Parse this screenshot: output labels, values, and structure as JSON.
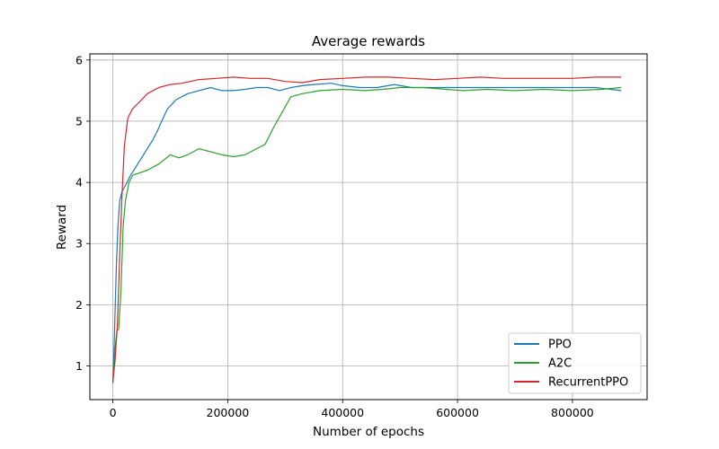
{
  "chart_data": {
    "type": "line",
    "title": "Average rewards",
    "xlabel": "Number of epochs",
    "ylabel": "Reward",
    "xlim": [
      -40000,
      930000
    ],
    "ylim": [
      0.45,
      6.1
    ],
    "xticks": [
      0,
      200000,
      400000,
      600000,
      800000
    ],
    "xtick_labels": [
      "0",
      "200000",
      "400000",
      "600000",
      "800000"
    ],
    "yticks": [
      1,
      2,
      3,
      4,
      5,
      6
    ],
    "ytick_labels": [
      "1",
      "2",
      "3",
      "4",
      "5",
      "6"
    ],
    "grid": true,
    "legend_position": "lower-right",
    "series": [
      {
        "name": "PPO",
        "color": "#1f77b4",
        "points": [
          [
            0,
            0.72
          ],
          [
            3000,
            1.6
          ],
          [
            6000,
            2.6
          ],
          [
            9000,
            3.3
          ],
          [
            12000,
            3.7
          ],
          [
            16000,
            3.85
          ],
          [
            22000,
            3.95
          ],
          [
            30000,
            4.1
          ],
          [
            40000,
            4.25
          ],
          [
            50000,
            4.4
          ],
          [
            60000,
            4.55
          ],
          [
            70000,
            4.7
          ],
          [
            78000,
            4.85
          ],
          [
            85000,
            5.0
          ],
          [
            95000,
            5.2
          ],
          [
            110000,
            5.35
          ],
          [
            130000,
            5.45
          ],
          [
            150000,
            5.5
          ],
          [
            170000,
            5.55
          ],
          [
            190000,
            5.5
          ],
          [
            210000,
            5.5
          ],
          [
            230000,
            5.52
          ],
          [
            250000,
            5.55
          ],
          [
            270000,
            5.55
          ],
          [
            290000,
            5.5
          ],
          [
            310000,
            5.55
          ],
          [
            330000,
            5.58
          ],
          [
            350000,
            5.6
          ],
          [
            380000,
            5.62
          ],
          [
            400000,
            5.58
          ],
          [
            430000,
            5.55
          ],
          [
            460000,
            5.55
          ],
          [
            490000,
            5.6
          ],
          [
            520000,
            5.55
          ],
          [
            550000,
            5.55
          ],
          [
            580000,
            5.55
          ],
          [
            610000,
            5.55
          ],
          [
            640000,
            5.55
          ],
          [
            680000,
            5.55
          ],
          [
            720000,
            5.55
          ],
          [
            760000,
            5.55
          ],
          [
            800000,
            5.55
          ],
          [
            840000,
            5.55
          ],
          [
            885000,
            5.5
          ]
        ]
      },
      {
        "name": "A2C",
        "color": "#2ca02c",
        "points": [
          [
            0,
            0.72
          ],
          [
            4000,
            1.3
          ],
          [
            7000,
            1.57
          ],
          [
            10000,
            1.6
          ],
          [
            14000,
            2.2
          ],
          [
            18000,
            3.3
          ],
          [
            22000,
            3.7
          ],
          [
            28000,
            4.0
          ],
          [
            35000,
            4.12
          ],
          [
            45000,
            4.15
          ],
          [
            60000,
            4.2
          ],
          [
            80000,
            4.3
          ],
          [
            100000,
            4.45
          ],
          [
            115000,
            4.4
          ],
          [
            130000,
            4.45
          ],
          [
            150000,
            4.55
          ],
          [
            170000,
            4.5
          ],
          [
            190000,
            4.45
          ],
          [
            210000,
            4.42
          ],
          [
            230000,
            4.45
          ],
          [
            250000,
            4.55
          ],
          [
            265000,
            4.62
          ],
          [
            280000,
            4.9
          ],
          [
            295000,
            5.15
          ],
          [
            310000,
            5.4
          ],
          [
            330000,
            5.45
          ],
          [
            360000,
            5.5
          ],
          [
            400000,
            5.52
          ],
          [
            440000,
            5.5
          ],
          [
            470000,
            5.52
          ],
          [
            500000,
            5.55
          ],
          [
            540000,
            5.55
          ],
          [
            580000,
            5.52
          ],
          [
            610000,
            5.5
          ],
          [
            650000,
            5.52
          ],
          [
            700000,
            5.5
          ],
          [
            750000,
            5.52
          ],
          [
            800000,
            5.5
          ],
          [
            850000,
            5.52
          ],
          [
            885000,
            5.55
          ]
        ]
      },
      {
        "name": "RecurrentPPO",
        "color": "#d62728",
        "points": [
          [
            0,
            0.75
          ],
          [
            4000,
            1.1
          ],
          [
            8000,
            1.7
          ],
          [
            12000,
            2.8
          ],
          [
            16000,
            3.8
          ],
          [
            20000,
            4.6
          ],
          [
            26000,
            5.05
          ],
          [
            34000,
            5.2
          ],
          [
            45000,
            5.3
          ],
          [
            60000,
            5.45
          ],
          [
            80000,
            5.55
          ],
          [
            100000,
            5.6
          ],
          [
            120000,
            5.62
          ],
          [
            150000,
            5.68
          ],
          [
            180000,
            5.7
          ],
          [
            210000,
            5.72
          ],
          [
            240000,
            5.7
          ],
          [
            270000,
            5.7
          ],
          [
            300000,
            5.65
          ],
          [
            330000,
            5.63
          ],
          [
            360000,
            5.68
          ],
          [
            400000,
            5.7
          ],
          [
            440000,
            5.72
          ],
          [
            480000,
            5.72
          ],
          [
            520000,
            5.7
          ],
          [
            560000,
            5.68
          ],
          [
            600000,
            5.7
          ],
          [
            640000,
            5.72
          ],
          [
            680000,
            5.7
          ],
          [
            720000,
            5.7
          ],
          [
            760000,
            5.7
          ],
          [
            800000,
            5.7
          ],
          [
            840000,
            5.72
          ],
          [
            885000,
            5.72
          ]
        ]
      }
    ]
  }
}
